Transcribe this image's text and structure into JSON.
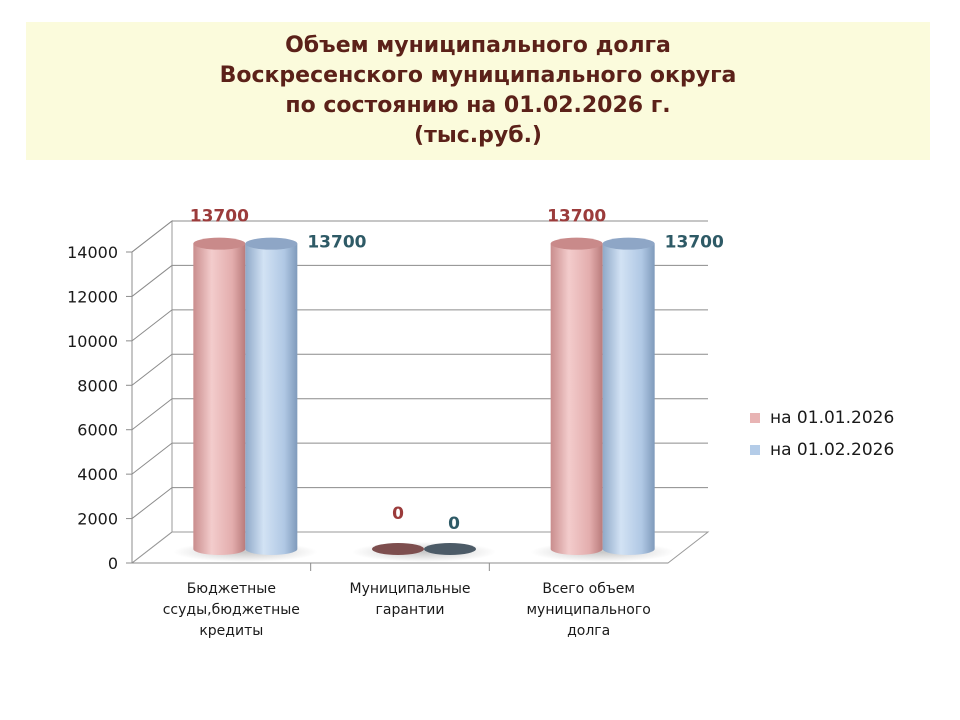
{
  "title": {
    "lines": [
      "Объем муниципального долга",
      "Воскресенского муниципального округа",
      "по состоянию на 01.02.2026 г.",
      "(тыс.руб.)"
    ]
  },
  "colors": {
    "series1": "#e8b4b4",
    "series1_label": "#9b3b3b",
    "series2": "#b4cce8",
    "series2_label": "#2e5a66",
    "title": "#5b2119",
    "title_bg": "#fbfbdc"
  },
  "chart_data": {
    "type": "bar",
    "style": "3d-cylinder",
    "categories": [
      "Бюджетные ссуды,бюджетные кредиты",
      "Муниципальные гарантии",
      "Всего объем муниципального долга"
    ],
    "category_lines": [
      [
        "Бюджетные",
        "ссуды,бюджетные",
        "кредиты"
      ],
      [
        "Муниципальные",
        "гарантии"
      ],
      [
        "Всего объем",
        "муниципального",
        "долга"
      ]
    ],
    "series": [
      {
        "name": "на 01.01.2026",
        "values": [
          13700,
          0,
          13700
        ],
        "labels": [
          "13700",
          "0",
          "13700"
        ]
      },
      {
        "name": "на 01.02.2026",
        "values": [
          13700,
          0,
          13700
        ],
        "labels": [
          "13700",
          "0",
          "13700"
        ]
      }
    ],
    "ylim": [
      0,
      14000
    ],
    "yticks": [
      "0",
      "2000",
      "4000",
      "6000",
      "8000",
      "10000",
      "12000",
      "14000"
    ],
    "ytick_values": [
      0,
      2000,
      4000,
      6000,
      8000,
      10000,
      12000,
      14000
    ],
    "grid": true,
    "legend": "right"
  }
}
